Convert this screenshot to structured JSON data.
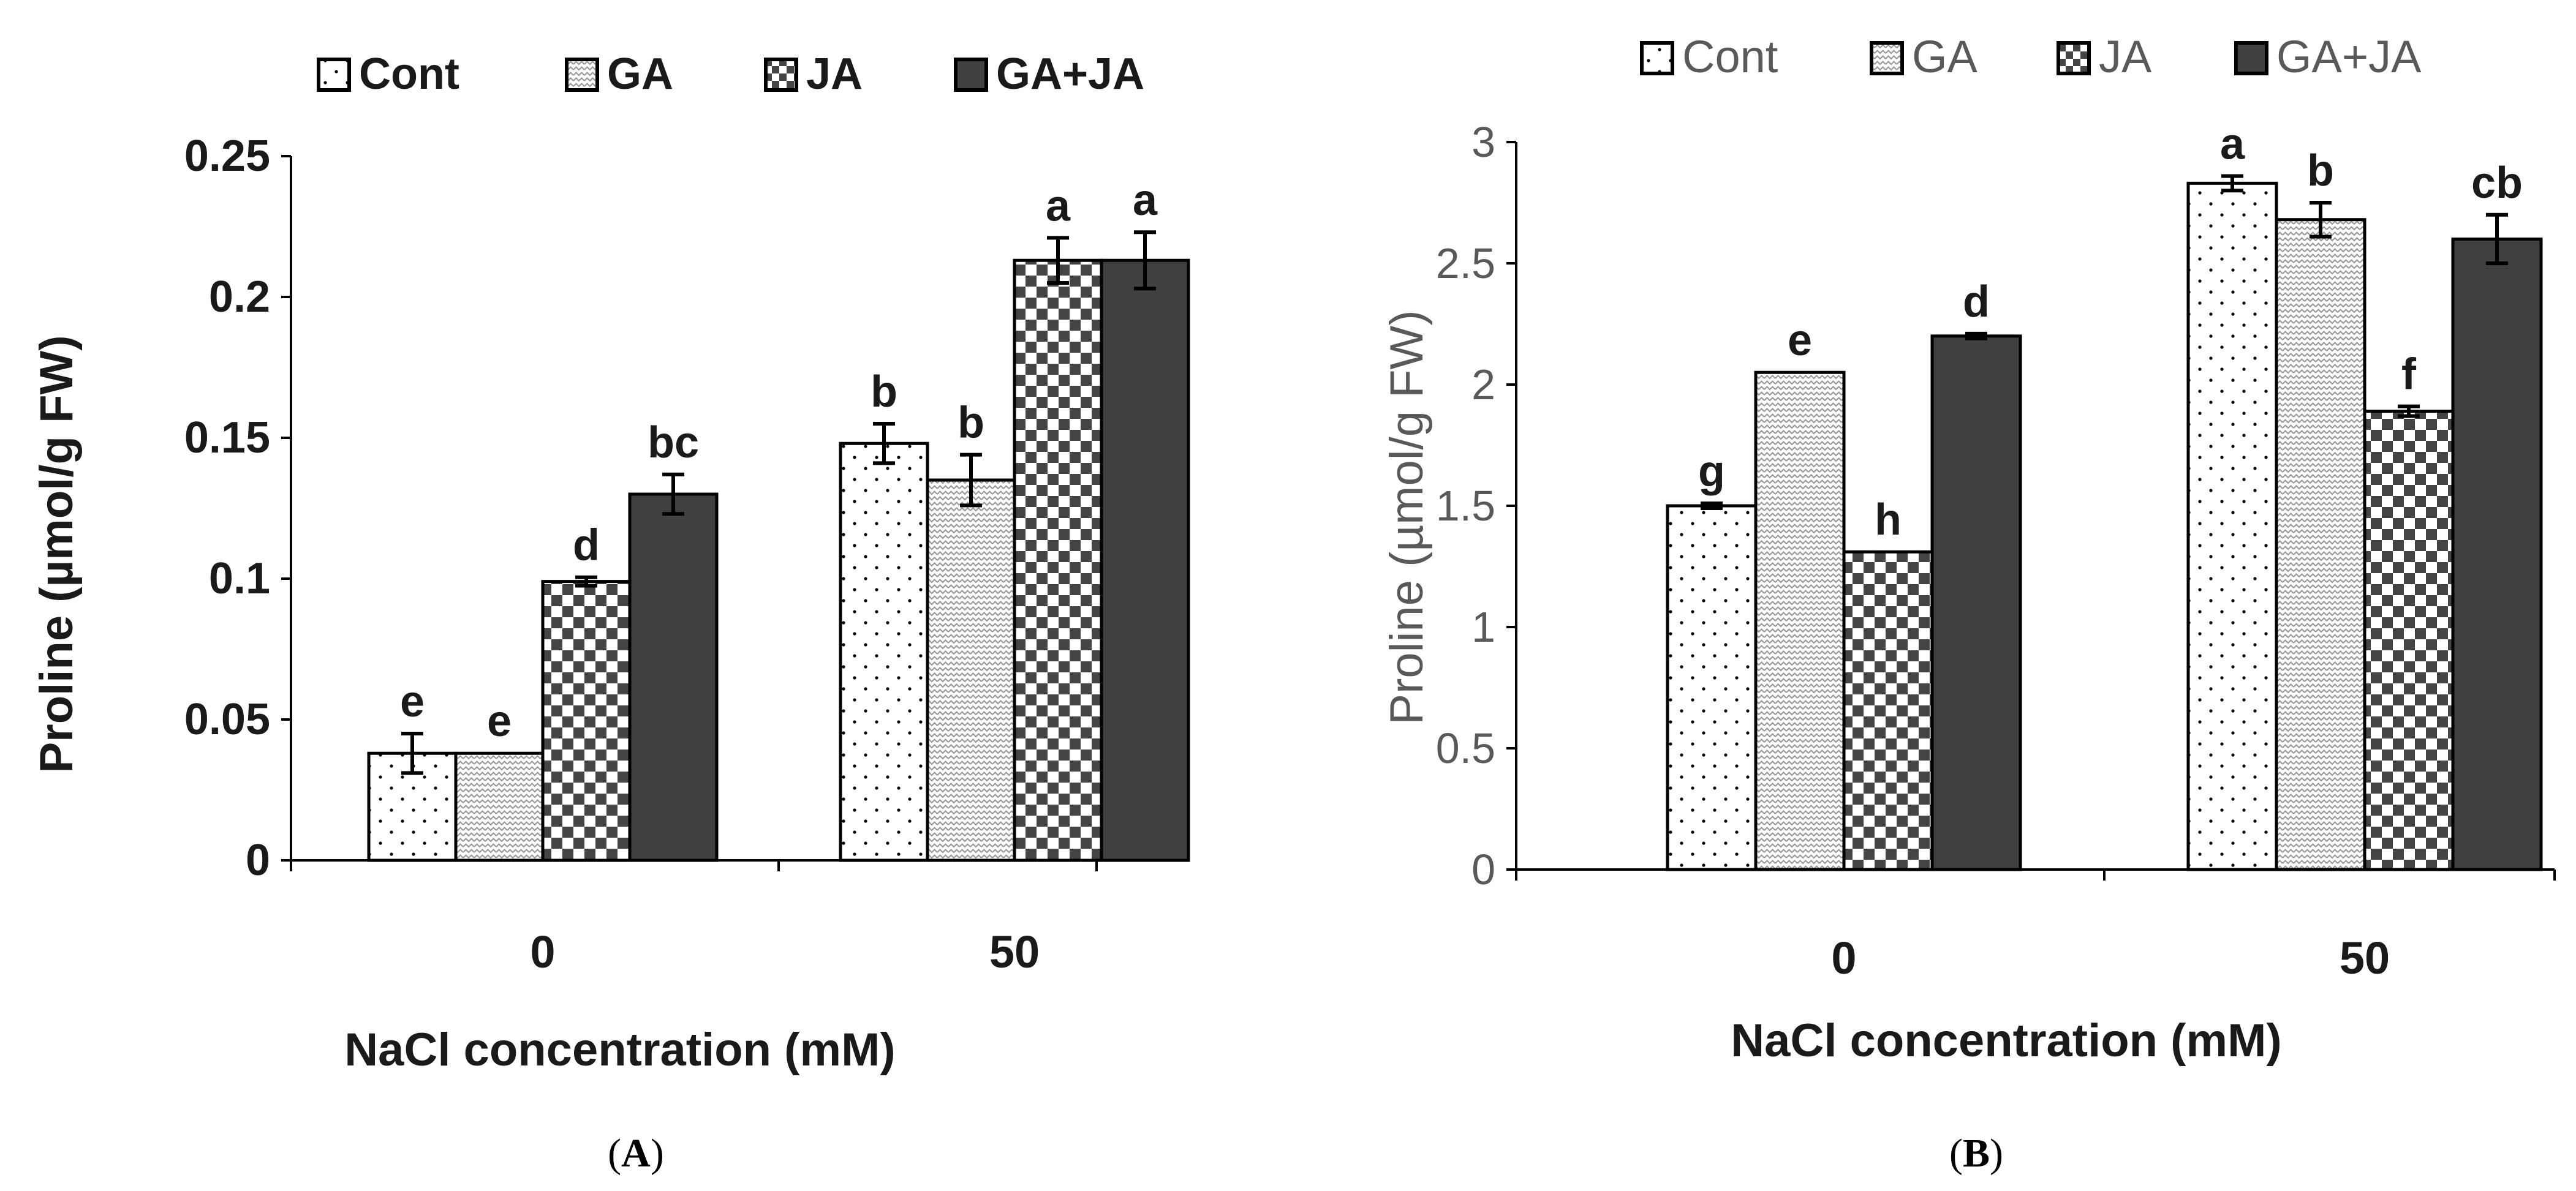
{
  "figure": {
    "panel_a_label": "A",
    "panel_b_label": "B"
  },
  "colors": {
    "bar_outline": "#000000",
    "gaja_fill": "#404040",
    "axis": "#000000",
    "text_a": "#1a1a1a",
    "text_b": "#595959"
  },
  "chart_data": [
    {
      "id": "A",
      "type": "bar",
      "title": "",
      "categories": [
        "0",
        "50"
      ],
      "xlabel": "NaCl concentration (mM)",
      "ylabel": "Proline  (µmol/g FW)",
      "ylim": [
        0,
        0.25
      ],
      "yticks": [
        0,
        0.05,
        0.1,
        0.15,
        0.2,
        0.25
      ],
      "ytick_labels": [
        "0",
        "0.05",
        "0.1",
        "0.15",
        "0.2",
        "0.25"
      ],
      "legend_position": "top",
      "series": [
        {
          "name": "Cont",
          "pattern": "dots",
          "values": [
            0.038,
            0.148
          ],
          "errors": [
            0.007,
            0.007
          ],
          "letters": [
            "e",
            "b"
          ]
        },
        {
          "name": "GA",
          "pattern": "zigzag",
          "values": [
            0.038,
            0.135
          ],
          "errors": [
            0.0,
            0.009
          ],
          "letters": [
            "e",
            "b"
          ]
        },
        {
          "name": "JA",
          "pattern": "checker",
          "values": [
            0.099,
            0.213
          ],
          "errors": [
            0.0015,
            0.008
          ],
          "letters": [
            "d",
            "a"
          ]
        },
        {
          "name": "GA+JA",
          "pattern": "solid",
          "values": [
            0.13,
            0.213
          ],
          "errors": [
            0.007,
            0.01
          ],
          "letters": [
            "bc",
            "a"
          ]
        }
      ]
    },
    {
      "id": "B",
      "type": "bar",
      "title": "",
      "categories": [
        "0",
        "50"
      ],
      "xlabel": "NaCl concentration (mM)",
      "ylabel": "Proline (µmol/g FW)",
      "ylim": [
        0,
        3
      ],
      "yticks": [
        0,
        0.5,
        1,
        1.5,
        2,
        2.5,
        3
      ],
      "ytick_labels": [
        "0",
        "0.5",
        "1",
        "1.5",
        "2",
        "2.5",
        "3"
      ],
      "legend_position": "top",
      "series": [
        {
          "name": "Cont",
          "pattern": "dots",
          "values": [
            1.5,
            2.83
          ],
          "errors": [
            0.01,
            0.03
          ],
          "letters": [
            "g",
            "a"
          ]
        },
        {
          "name": "GA",
          "pattern": "zigzag",
          "values": [
            2.05,
            2.68
          ],
          "errors": [
            0.0,
            0.07
          ],
          "letters": [
            "e",
            "b"
          ]
        },
        {
          "name": "JA",
          "pattern": "checker",
          "values": [
            1.31,
            1.89
          ],
          "errors": [
            0.0,
            0.02
          ],
          "letters": [
            "h",
            "f"
          ]
        },
        {
          "name": "GA+JA",
          "pattern": "solid",
          "values": [
            2.2,
            2.6
          ],
          "errors": [
            0.01,
            0.1
          ],
          "letters": [
            "d",
            "cb"
          ]
        }
      ]
    }
  ]
}
